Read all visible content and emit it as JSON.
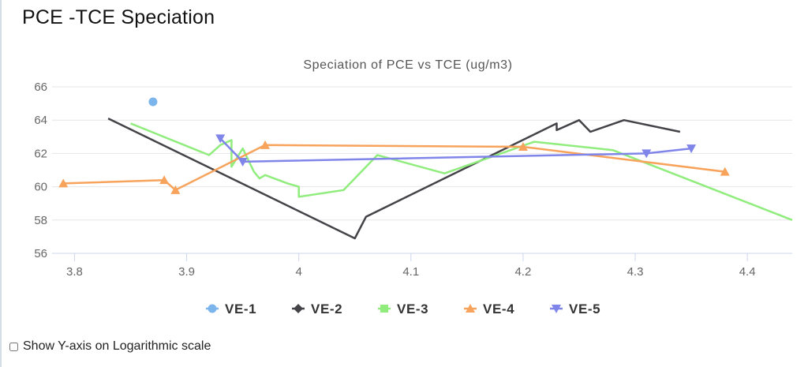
{
  "page": {
    "title": "PCE -TCE Speciation"
  },
  "controls": {
    "log_scale_label": "Show Y-axis on Logarithmic scale",
    "log_scale_checked": false
  },
  "chart_data": {
    "type": "line",
    "title": "Speciation of PCE vs TCE (ug/m3)",
    "xlabel": "",
    "ylabel": "",
    "xlim": [
      3.78,
      4.44
    ],
    "ylim": [
      56,
      66
    ],
    "x_ticks": [
      3.8,
      3.9,
      4.0,
      4.1,
      4.2,
      4.3,
      4.4
    ],
    "x_tick_labels": [
      "3.8",
      "3.9",
      "4",
      "4.1",
      "4.2",
      "4.3",
      "4.4"
    ],
    "y_ticks": [
      56,
      58,
      60,
      62,
      64,
      66
    ],
    "y_tick_labels": [
      "56",
      "58",
      "60",
      "62",
      "64",
      "66"
    ],
    "grid": "horizontal",
    "legend_position": "bottom-center",
    "series": [
      {
        "name": "VE-1",
        "color": "#7cb5ec",
        "marker": "circle",
        "show_markers": true,
        "points": [
          [
            3.87,
            65.1
          ]
        ]
      },
      {
        "name": "VE-2",
        "color": "#434348",
        "marker": "diamond",
        "show_markers": false,
        "points": [
          [
            3.83,
            64.1
          ],
          [
            4.05,
            56.9
          ],
          [
            4.06,
            58.2
          ],
          [
            4.23,
            63.8
          ],
          [
            4.23,
            63.4
          ],
          [
            4.25,
            64.0
          ],
          [
            4.26,
            63.3
          ],
          [
            4.29,
            64.0
          ],
          [
            4.34,
            63.3
          ]
        ]
      },
      {
        "name": "VE-3",
        "color": "#90ed7d",
        "marker": "square",
        "show_markers": false,
        "points": [
          [
            3.85,
            63.8
          ],
          [
            3.92,
            61.9
          ],
          [
            3.93,
            62.5
          ],
          [
            3.94,
            62.8
          ],
          [
            3.94,
            61.2
          ],
          [
            3.95,
            62.3
          ],
          [
            3.96,
            60.9
          ],
          [
            3.965,
            60.5
          ],
          [
            3.97,
            60.7
          ],
          [
            3.99,
            60.2
          ],
          [
            4.0,
            60.0
          ],
          [
            4.0,
            59.4
          ],
          [
            4.04,
            59.8
          ],
          [
            4.07,
            61.9
          ],
          [
            4.13,
            60.8
          ],
          [
            4.21,
            62.7
          ],
          [
            4.28,
            62.2
          ],
          [
            4.44,
            58.0
          ]
        ]
      },
      {
        "name": "VE-4",
        "color": "#f7a35c",
        "marker": "triangle",
        "show_markers": true,
        "points": [
          [
            3.79,
            60.2
          ],
          [
            3.88,
            60.4
          ],
          [
            3.89,
            59.8
          ],
          [
            3.97,
            62.5
          ],
          [
            4.2,
            62.4
          ],
          [
            4.38,
            60.9
          ]
        ]
      },
      {
        "name": "VE-5",
        "color": "#8085e9",
        "marker": "triangle-down",
        "show_markers": true,
        "points": [
          [
            3.93,
            62.9
          ],
          [
            3.95,
            61.5
          ],
          [
            4.31,
            62.0
          ],
          [
            4.35,
            62.3
          ]
        ]
      }
    ]
  }
}
